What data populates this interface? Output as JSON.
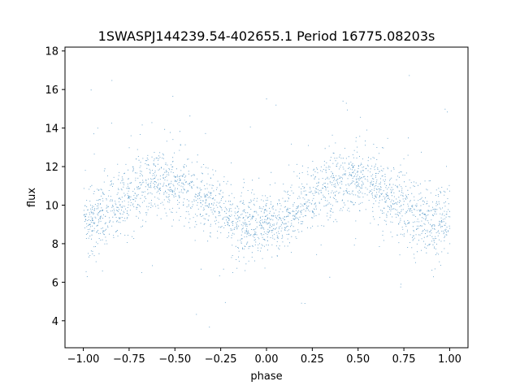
{
  "chart_data": {
    "type": "scatter",
    "title": "1SWASPJ144239.54-402655.1 Period 16775.08203s",
    "xlabel": "phase",
    "ylabel": "flux",
    "xlim": [
      -1.1,
      1.1
    ],
    "ylim": [
      2.6,
      18.2
    ],
    "xticks": [
      -1.0,
      -0.75,
      -0.5,
      -0.25,
      0.0,
      0.25,
      0.5,
      0.75,
      1.0
    ],
    "xtick_labels": [
      "−1.00",
      "−0.75",
      "−0.50",
      "−0.25",
      "0.00",
      "0.25",
      "0.50",
      "0.75",
      "1.00"
    ],
    "yticks": [
      4,
      6,
      8,
      10,
      12,
      14,
      16,
      18
    ],
    "ytick_labels": [
      "4",
      "6",
      "8",
      "10",
      "12",
      "14",
      "16",
      "18"
    ],
    "grid": false,
    "marker_color": "#1f77b4",
    "series": [
      {
        "phase_range": [
          -1.0,
          1.0
        ],
        "profile": {
          "phase": [
            -1.0,
            -0.9,
            -0.8,
            -0.7,
            -0.6,
            -0.5,
            -0.4,
            -0.3,
            -0.2,
            -0.1,
            0.0,
            0.1,
            0.2,
            0.3,
            0.4,
            0.5,
            0.6,
            0.7,
            0.8,
            0.9,
            1.0
          ],
          "median_flux": [
            9.2,
            9.6,
            10.2,
            10.9,
            11.3,
            11.2,
            10.7,
            10.0,
            9.3,
            9.0,
            9.0,
            9.3,
            10.0,
            10.8,
            11.3,
            11.3,
            10.9,
            10.2,
            9.6,
            9.2,
            9.2
          ],
          "scatter_sigma": [
            0.8,
            0.8,
            0.8,
            0.85,
            0.85,
            0.85,
            0.85,
            0.8,
            0.8,
            0.75,
            0.75,
            0.75,
            0.8,
            0.85,
            0.85,
            0.85,
            0.85,
            0.8,
            0.8,
            0.8,
            0.8
          ]
        },
        "outlier_range": [
          3.3,
          17.5
        ]
      }
    ]
  }
}
